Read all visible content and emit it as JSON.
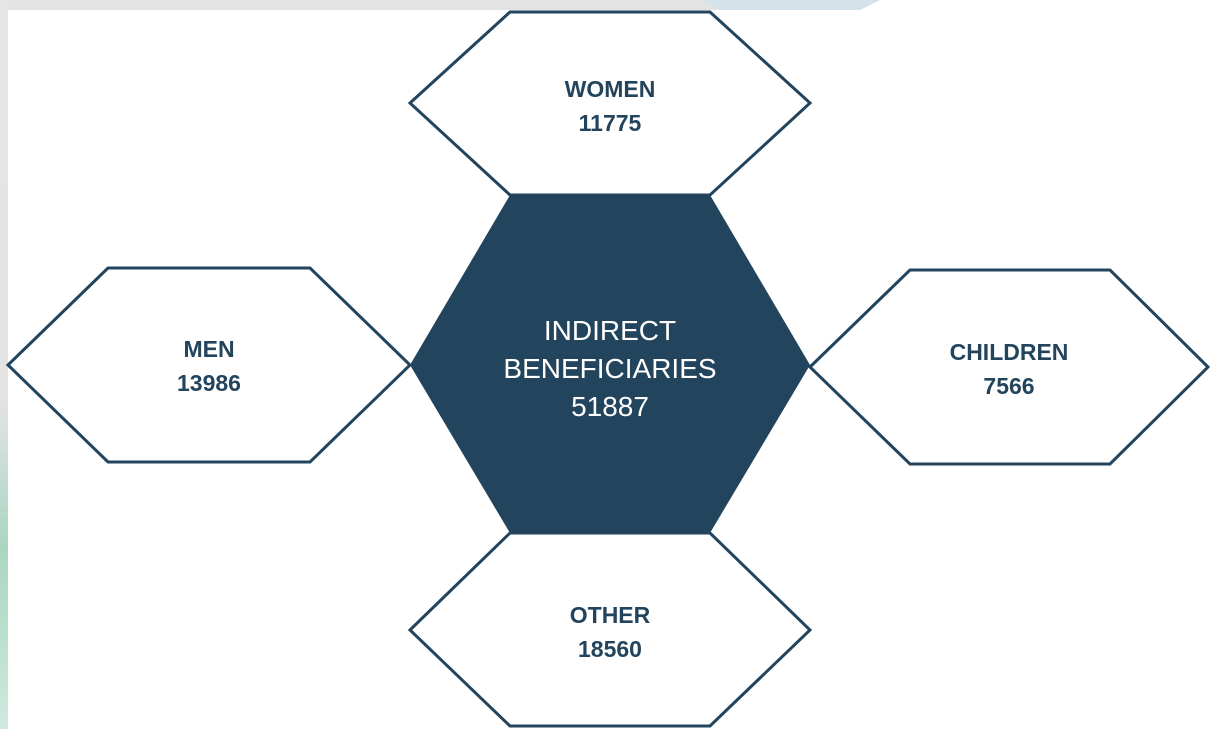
{
  "center": {
    "label_lines": [
      "INDIRECT",
      "BENEFICIARIES"
    ],
    "value": 51887
  },
  "nodes": [
    {
      "label": "WOMEN",
      "value": 11775
    },
    {
      "label": "MEN",
      "value": 13986
    },
    {
      "label": "CHILDREN",
      "value": 7566
    },
    {
      "label": "OTHER",
      "value": 18560
    }
  ]
}
